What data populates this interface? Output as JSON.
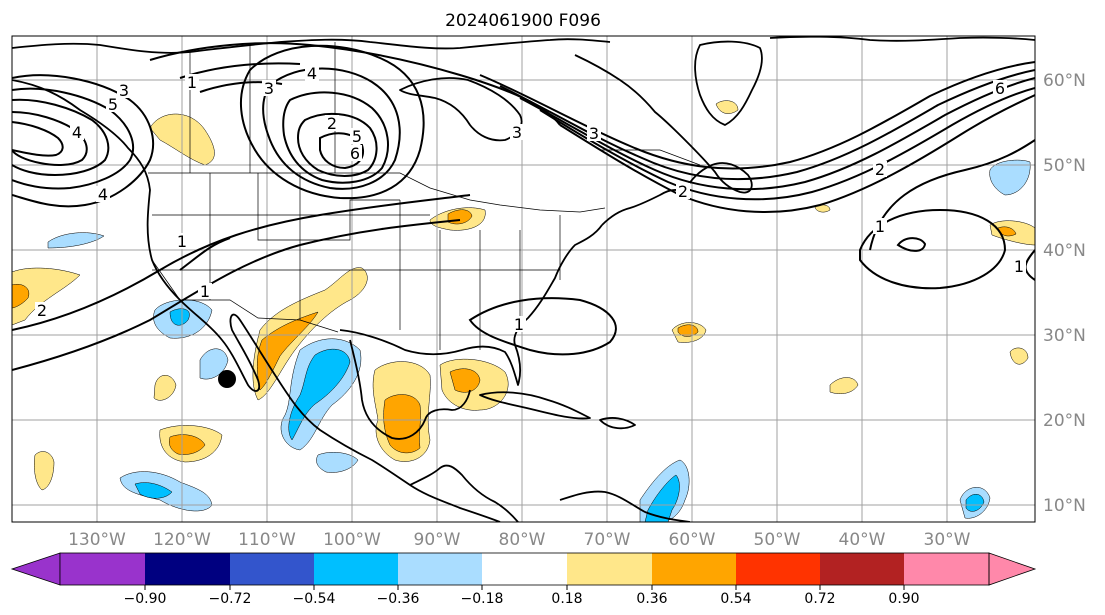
{
  "title": "2024061900 F096",
  "map": {
    "lon_labels": [
      "130°W",
      "120°W",
      "110°W",
      "100°W",
      "90°W",
      "80°W",
      "70°W",
      "60°W",
      "50°W",
      "40°W",
      "30°W"
    ],
    "lat_labels": [
      "10°N",
      "20°N",
      "30°N",
      "40°N",
      "50°N",
      "60°N"
    ],
    "contour_labels": [
      "3",
      "1",
      "4",
      "5",
      "4",
      "3",
      "4",
      "5",
      "6",
      "3",
      "1",
      "1",
      "2",
      "2",
      "2",
      "3",
      "6",
      "2",
      "1",
      "1",
      "1"
    ],
    "storm_marker": {
      "name": "storm-center-marker",
      "lon": -114.5,
      "lat": 24.8
    }
  },
  "colorbar": {
    "tick_labels": [
      "−0.90",
      "−0.72",
      "−0.54",
      "−0.36",
      "−0.18",
      "0.18",
      "0.36",
      "0.54",
      "0.72",
      "0.90"
    ],
    "colors": [
      "#9933cc",
      "#000080",
      "#3355cc",
      "#00bfff",
      "#aaddff",
      "#ffffff",
      "#ffe78a",
      "#ffa500",
      "#ff3300",
      "#b22222",
      "#ff88aa"
    ]
  },
  "colors": {
    "land_outline": "#000000",
    "grid": "#a0a0a0",
    "contour": "#000000"
  }
}
